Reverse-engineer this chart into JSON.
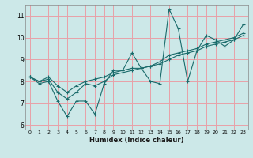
{
  "title": "",
  "xlabel": "Humidex (Indice chaleur)",
  "ylabel": "",
  "xlim": [
    -0.5,
    23.5
  ],
  "ylim": [
    5.8,
    11.5
  ],
  "yticks": [
    6,
    7,
    8,
    9,
    10,
    11
  ],
  "xticks": [
    0,
    1,
    2,
    3,
    4,
    5,
    6,
    7,
    8,
    9,
    10,
    11,
    12,
    13,
    14,
    15,
    16,
    17,
    18,
    19,
    20,
    21,
    22,
    23
  ],
  "bg_color": "#cce8e8",
  "grid_color": "#e8a0a8",
  "line_color": "#1a6b6b",
  "series1_x": [
    0,
    1,
    2,
    3,
    4,
    5,
    6,
    7,
    8,
    9,
    10,
    11,
    12,
    13,
    14,
    15,
    16,
    17,
    18,
    19,
    20,
    21,
    22,
    23
  ],
  "series1_y": [
    8.2,
    7.9,
    8.0,
    7.1,
    6.4,
    7.1,
    7.1,
    6.5,
    7.9,
    8.5,
    8.5,
    9.3,
    8.6,
    8.0,
    7.9,
    11.3,
    10.4,
    8.0,
    9.4,
    10.1,
    9.9,
    9.6,
    9.9,
    10.6
  ],
  "series2_x": [
    0,
    1,
    2,
    3,
    4,
    5,
    6,
    7,
    8,
    9,
    10,
    11,
    12,
    13,
    14,
    15,
    16,
    17,
    18,
    19,
    20,
    21,
    22,
    23
  ],
  "series2_y": [
    8.2,
    8.0,
    8.1,
    7.5,
    7.2,
    7.5,
    7.9,
    7.8,
    8.0,
    8.3,
    8.4,
    8.5,
    8.6,
    8.7,
    8.8,
    9.0,
    9.2,
    9.3,
    9.4,
    9.6,
    9.7,
    9.8,
    9.9,
    10.1
  ],
  "series3_x": [
    0,
    1,
    2,
    3,
    4,
    5,
    6,
    7,
    8,
    9,
    10,
    11,
    12,
    13,
    14,
    15,
    16,
    17,
    18,
    19,
    20,
    21,
    22,
    23
  ],
  "series3_y": [
    8.2,
    8.0,
    8.2,
    7.8,
    7.5,
    7.8,
    8.0,
    8.1,
    8.2,
    8.4,
    8.5,
    8.6,
    8.6,
    8.7,
    8.9,
    9.2,
    9.3,
    9.4,
    9.5,
    9.7,
    9.8,
    9.9,
    10.0,
    10.2
  ]
}
